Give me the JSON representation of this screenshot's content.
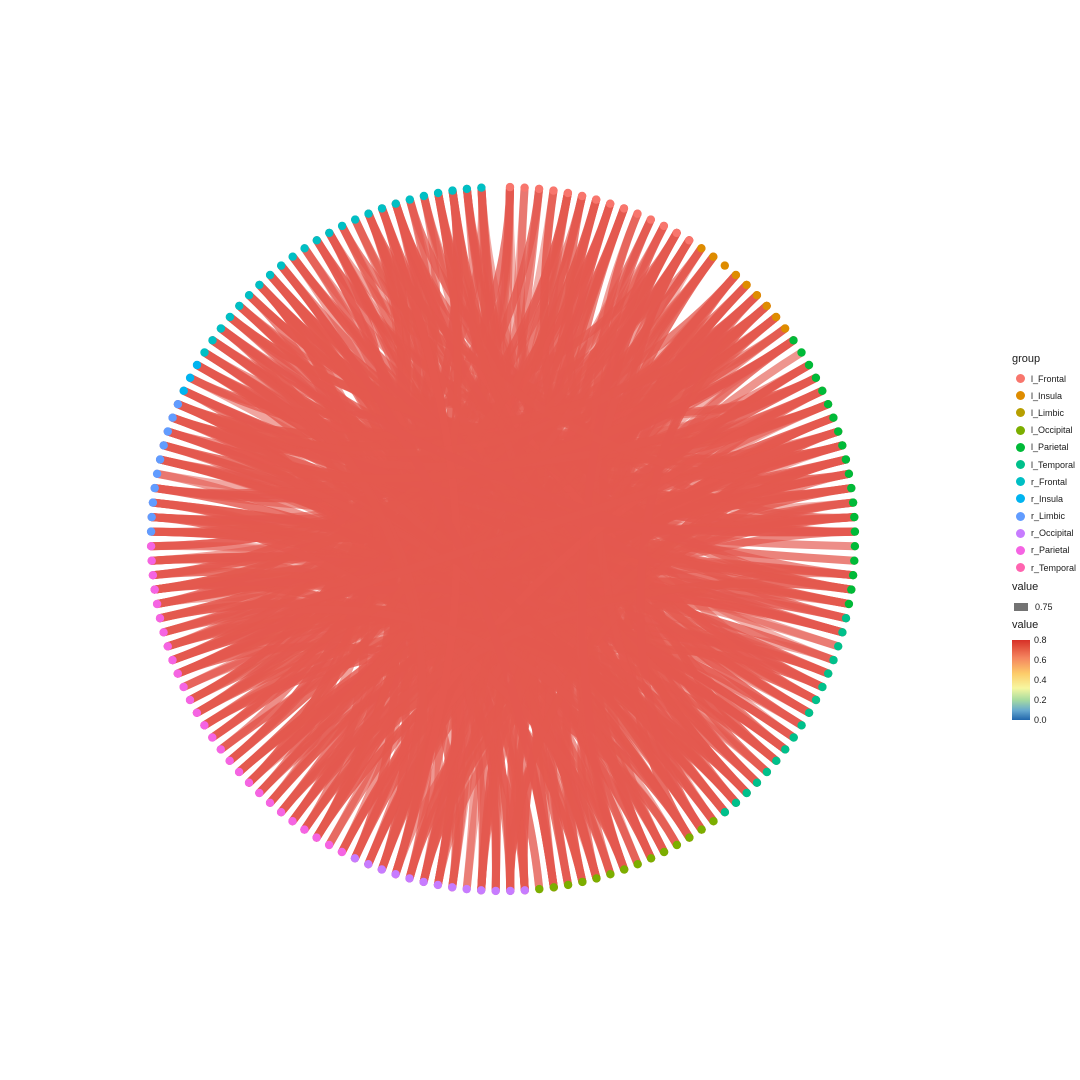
{
  "chart_data": {
    "type": "chord",
    "title": "",
    "node_groups": [
      {
        "name": "l_Frontal",
        "color": "#F8766D"
      },
      {
        "name": "l_Insula",
        "color": "#DE8C00"
      },
      {
        "name": "l_Limbic",
        "color": "#B79F00"
      },
      {
        "name": "l_Occipital",
        "color": "#7CAE00"
      },
      {
        "name": "l_Parietal",
        "color": "#00BA38"
      },
      {
        "name": "l_Temporal",
        "color": "#00C08B"
      },
      {
        "name": "r_Frontal",
        "color": "#00BFC4"
      },
      {
        "name": "r_Insula",
        "color": "#00B4F0"
      },
      {
        "name": "r_Limbic",
        "color": "#619CFF"
      },
      {
        "name": "r_Occipital",
        "color": "#C77CFF"
      },
      {
        "name": "r_Parietal",
        "color": "#F564E3"
      },
      {
        "name": "r_Temporal",
        "color": "#FF64B0"
      }
    ],
    "node_counts": [
      14,
      9,
      0,
      14,
      20,
      17,
      24,
      3,
      10,
      13,
      27,
      0
    ],
    "edge_color": "#E4594F",
    "edge_value": 0.75,
    "edge_count": 420
  },
  "legend": {
    "group_title": "group",
    "size_title": "value",
    "size_label": "0.75",
    "color_title": "value",
    "color_ticks": [
      "0.8",
      "0.6",
      "0.4",
      "0.2",
      "0.0"
    ],
    "color_scale": {
      "min": 0.0,
      "max": 0.8
    }
  }
}
